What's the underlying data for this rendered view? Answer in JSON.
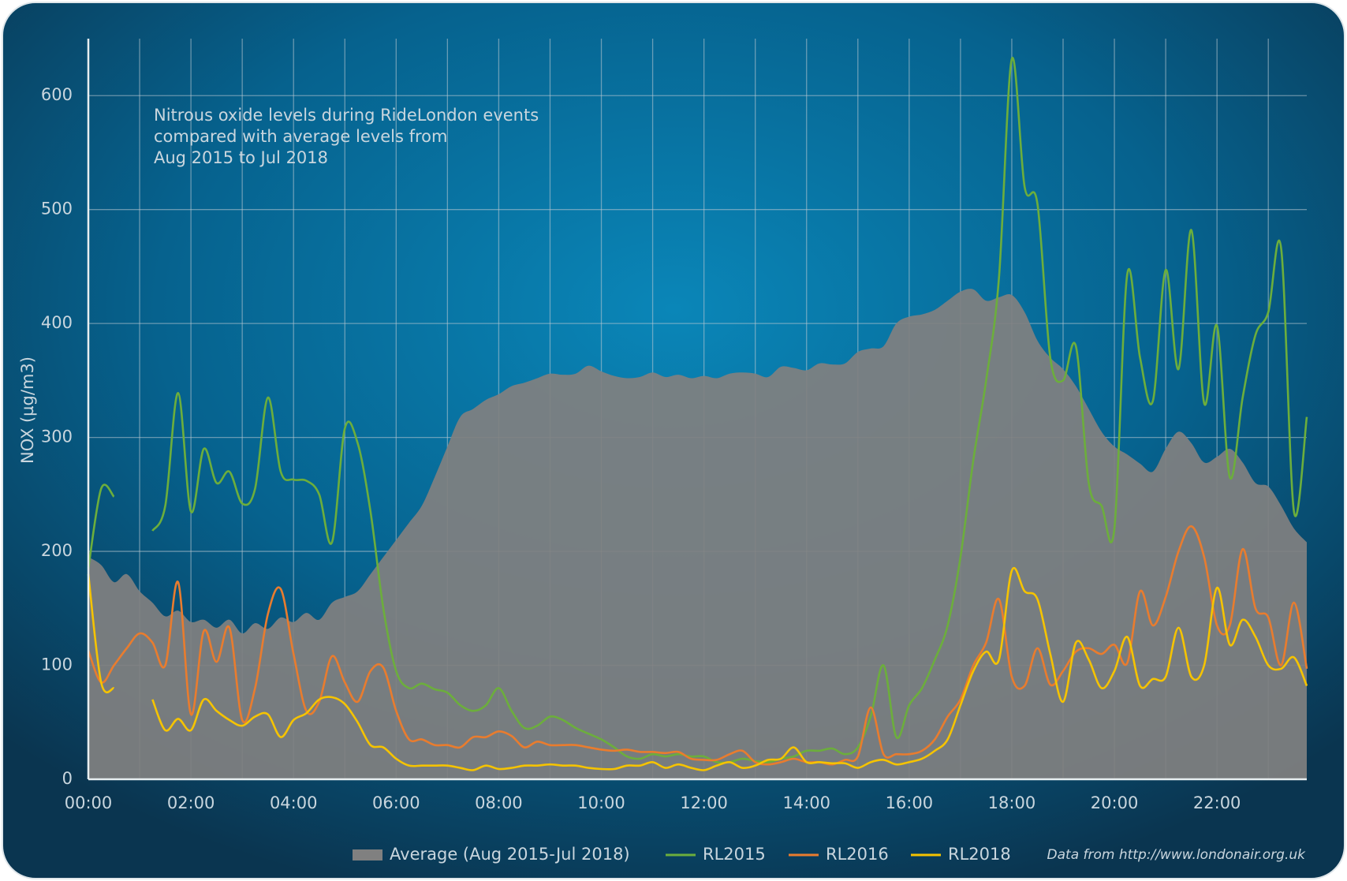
{
  "chart_data": {
    "type": "line",
    "annotation": [
      "Nitrous oxide levels during RideLondon events",
      "compared with average levels from",
      "Aug 2015 to Jul 2018"
    ],
    "ylabel": "NOX (µg/m3)",
    "source": "Data from http://www.londonair.org.uk",
    "x": [
      0,
      0.25,
      0.5,
      0.75,
      1,
      1.25,
      1.5,
      1.75,
      2,
      2.25,
      2.5,
      2.75,
      3,
      3.25,
      3.5,
      3.75,
      4,
      4.25,
      4.5,
      4.75,
      5,
      5.25,
      5.5,
      5.75,
      6,
      6.25,
      6.5,
      6.75,
      7,
      7.25,
      7.5,
      7.75,
      8,
      8.25,
      8.5,
      8.75,
      9,
      9.25,
      9.5,
      9.75,
      10,
      10.25,
      10.5,
      10.75,
      11,
      11.25,
      11.5,
      11.75,
      12,
      12.25,
      12.5,
      12.75,
      13,
      13.25,
      13.5,
      13.75,
      14,
      14.25,
      14.5,
      14.75,
      15,
      15.25,
      15.5,
      15.75,
      16,
      16.25,
      16.5,
      16.75,
      17,
      17.25,
      17.5,
      17.75,
      18,
      18.25,
      18.5,
      18.75,
      19,
      19.25,
      19.5,
      19.75,
      20,
      20.25,
      20.5,
      20.75,
      21,
      21.25,
      21.5,
      21.75,
      22,
      22.25,
      22.5,
      22.75,
      23,
      23.25,
      23.5,
      23.75
    ],
    "xlim": [
      0,
      23.75
    ],
    "xticks": [
      {
        "value": 0,
        "label": "00:00"
      },
      {
        "value": 2,
        "label": "02:00"
      },
      {
        "value": 4,
        "label": "04:00"
      },
      {
        "value": 6,
        "label": "06:00"
      },
      {
        "value": 8,
        "label": "08:00"
      },
      {
        "value": 10,
        "label": "10:00"
      },
      {
        "value": 12,
        "label": "12:00"
      },
      {
        "value": 14,
        "label": "14:00"
      },
      {
        "value": 16,
        "label": "16:00"
      },
      {
        "value": 18,
        "label": "18:00"
      },
      {
        "value": 20,
        "label": "20:00"
      },
      {
        "value": 22,
        "label": "22:00"
      }
    ],
    "ylim": [
      0,
      650
    ],
    "yticks": [
      0,
      100,
      200,
      300,
      400,
      500,
      600
    ],
    "grid": true,
    "legend": "bottom",
    "series": [
      {
        "name": "Average (Aug 2015-Jul 2018)",
        "type": "area",
        "color": "#808080",
        "values": [
          195,
          188,
          173,
          180,
          165,
          155,
          143,
          148,
          138,
          140,
          133,
          140,
          128,
          137,
          132,
          142,
          138,
          146,
          140,
          155,
          160,
          165,
          180,
          195,
          210,
          225,
          240,
          265,
          292,
          318,
          325,
          333,
          338,
          345,
          348,
          352,
          356,
          355,
          356,
          363,
          358,
          354,
          352,
          353,
          357,
          353,
          355,
          352,
          354,
          352,
          356,
          357,
          356,
          353,
          362,
          361,
          359,
          365,
          364,
          365,
          375,
          378,
          380,
          400,
          406,
          408,
          412,
          420,
          428,
          430,
          420,
          423,
          425,
          410,
          385,
          370,
          360,
          345,
          325,
          305,
          292,
          285,
          277,
          270,
          290,
          305,
          295,
          278,
          283,
          290,
          278,
          260,
          257,
          240,
          220,
          208
        ]
      },
      {
        "name": "RL2015",
        "color": "#6cae3c",
        "values": [
          185,
          255,
          248,
          null,
          null,
          218,
          240,
          339,
          235,
          290,
          260,
          270,
          242,
          255,
          335,
          270,
          263,
          262,
          250,
          208,
          308,
          295,
          235,
          150,
          95,
          80,
          84,
          79,
          76,
          65,
          60,
          65,
          80,
          60,
          45,
          47,
          55,
          52,
          45,
          40,
          35,
          28,
          20,
          18,
          22,
          20,
          22,
          20,
          20,
          15,
          15,
          18,
          16,
          15,
          18,
          20,
          25,
          25,
          27,
          22,
          28,
          55,
          100,
          37,
          65,
          80,
          105,
          135,
          195,
          280,
          350,
          440,
          632,
          520,
          505,
          370,
          350,
          380,
          260,
          240,
          220,
          443,
          370,
          332,
          447,
          360,
          482,
          330,
          398,
          265,
          335,
          390,
          410,
          466,
          235,
          318
        ]
      },
      {
        "name": "RL2016",
        "color": "#e97c2e",
        "values": [
          113,
          85,
          100,
          115,
          128,
          120,
          100,
          173,
          57,
          130,
          103,
          133,
          52,
          80,
          145,
          167,
          110,
          60,
          68,
          108,
          85,
          68,
          95,
          98,
          60,
          35,
          35,
          30,
          30,
          28,
          37,
          37,
          42,
          38,
          28,
          33,
          30,
          30,
          30,
          28,
          26,
          25,
          26,
          24,
          24,
          23,
          24,
          18,
          17,
          17,
          22,
          25,
          15,
          13,
          15,
          18,
          15,
          15,
          13,
          17,
          20,
          63,
          22,
          22,
          22,
          25,
          35,
          55,
          70,
          100,
          120,
          158,
          90,
          82,
          115,
          83,
          95,
          112,
          115,
          110,
          118,
          102,
          165,
          135,
          160,
          200,
          222,
          195,
          135,
          135,
          202,
          150,
          142,
          100,
          155,
          97
        ]
      },
      {
        "name": "RL2018",
        "color": "#f5c300",
        "values": [
          180,
          85,
          80,
          null,
          null,
          70,
          43,
          53,
          43,
          70,
          60,
          52,
          47,
          55,
          57,
          37,
          52,
          58,
          70,
          72,
          66,
          50,
          30,
          28,
          18,
          12,
          12,
          12,
          12,
          10,
          8,
          12,
          9,
          10,
          12,
          12,
          13,
          12,
          12,
          10,
          9,
          9,
          12,
          12,
          15,
          10,
          13,
          10,
          8,
          12,
          15,
          10,
          12,
          17,
          18,
          28,
          15,
          15,
          14,
          14,
          10,
          15,
          17,
          13,
          15,
          18,
          25,
          35,
          65,
          95,
          112,
          105,
          183,
          165,
          158,
          110,
          68,
          120,
          105,
          80,
          95,
          125,
          82,
          88,
          90,
          133,
          90,
          100,
          168,
          118,
          140,
          125,
          100,
          97,
          107,
          82
        ]
      }
    ]
  }
}
